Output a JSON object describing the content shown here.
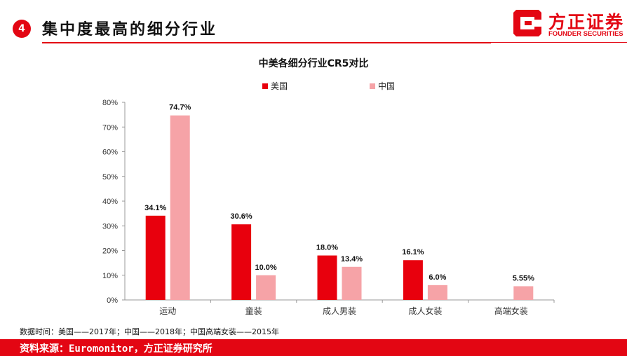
{
  "header": {
    "badge": "4",
    "title": "集中度最高的细分行业",
    "logo_cn": "方正证券",
    "logo_en": "FOUNDER SECURITIES"
  },
  "colors": {
    "accent": "#e30613",
    "us": "#e8000d",
    "cn": "#f6a3a7"
  },
  "chart_data": {
    "type": "bar",
    "title": "中美各细分行业CR5对比",
    "categories": [
      "运动",
      "童装",
      "成人男装",
      "成人女装",
      "高端女装"
    ],
    "series": [
      {
        "name": "美国",
        "values": [
          34.1,
          30.6,
          18.0,
          16.1,
          null
        ],
        "labels": [
          "34.1%",
          "30.6%",
          "18.0%",
          "16.1%",
          ""
        ]
      },
      {
        "name": "中国",
        "values": [
          74.7,
          10.0,
          13.4,
          6.0,
          5.55
        ],
        "labels": [
          "74.7%",
          "10.0%",
          "13.4%",
          "6.0%",
          "5.55%"
        ]
      }
    ],
    "ylim": [
      0,
      80
    ],
    "yticks": [
      "0%",
      "10%",
      "20%",
      "30%",
      "40%",
      "50%",
      "60%",
      "70%",
      "80%"
    ],
    "legend_position": "top",
    "grid": false
  },
  "note": "数据时间：美国——2017年；中国——2018年；中国高端女装——2015年",
  "footer": "资料来源：Euromonitor，方正证券研究所"
}
